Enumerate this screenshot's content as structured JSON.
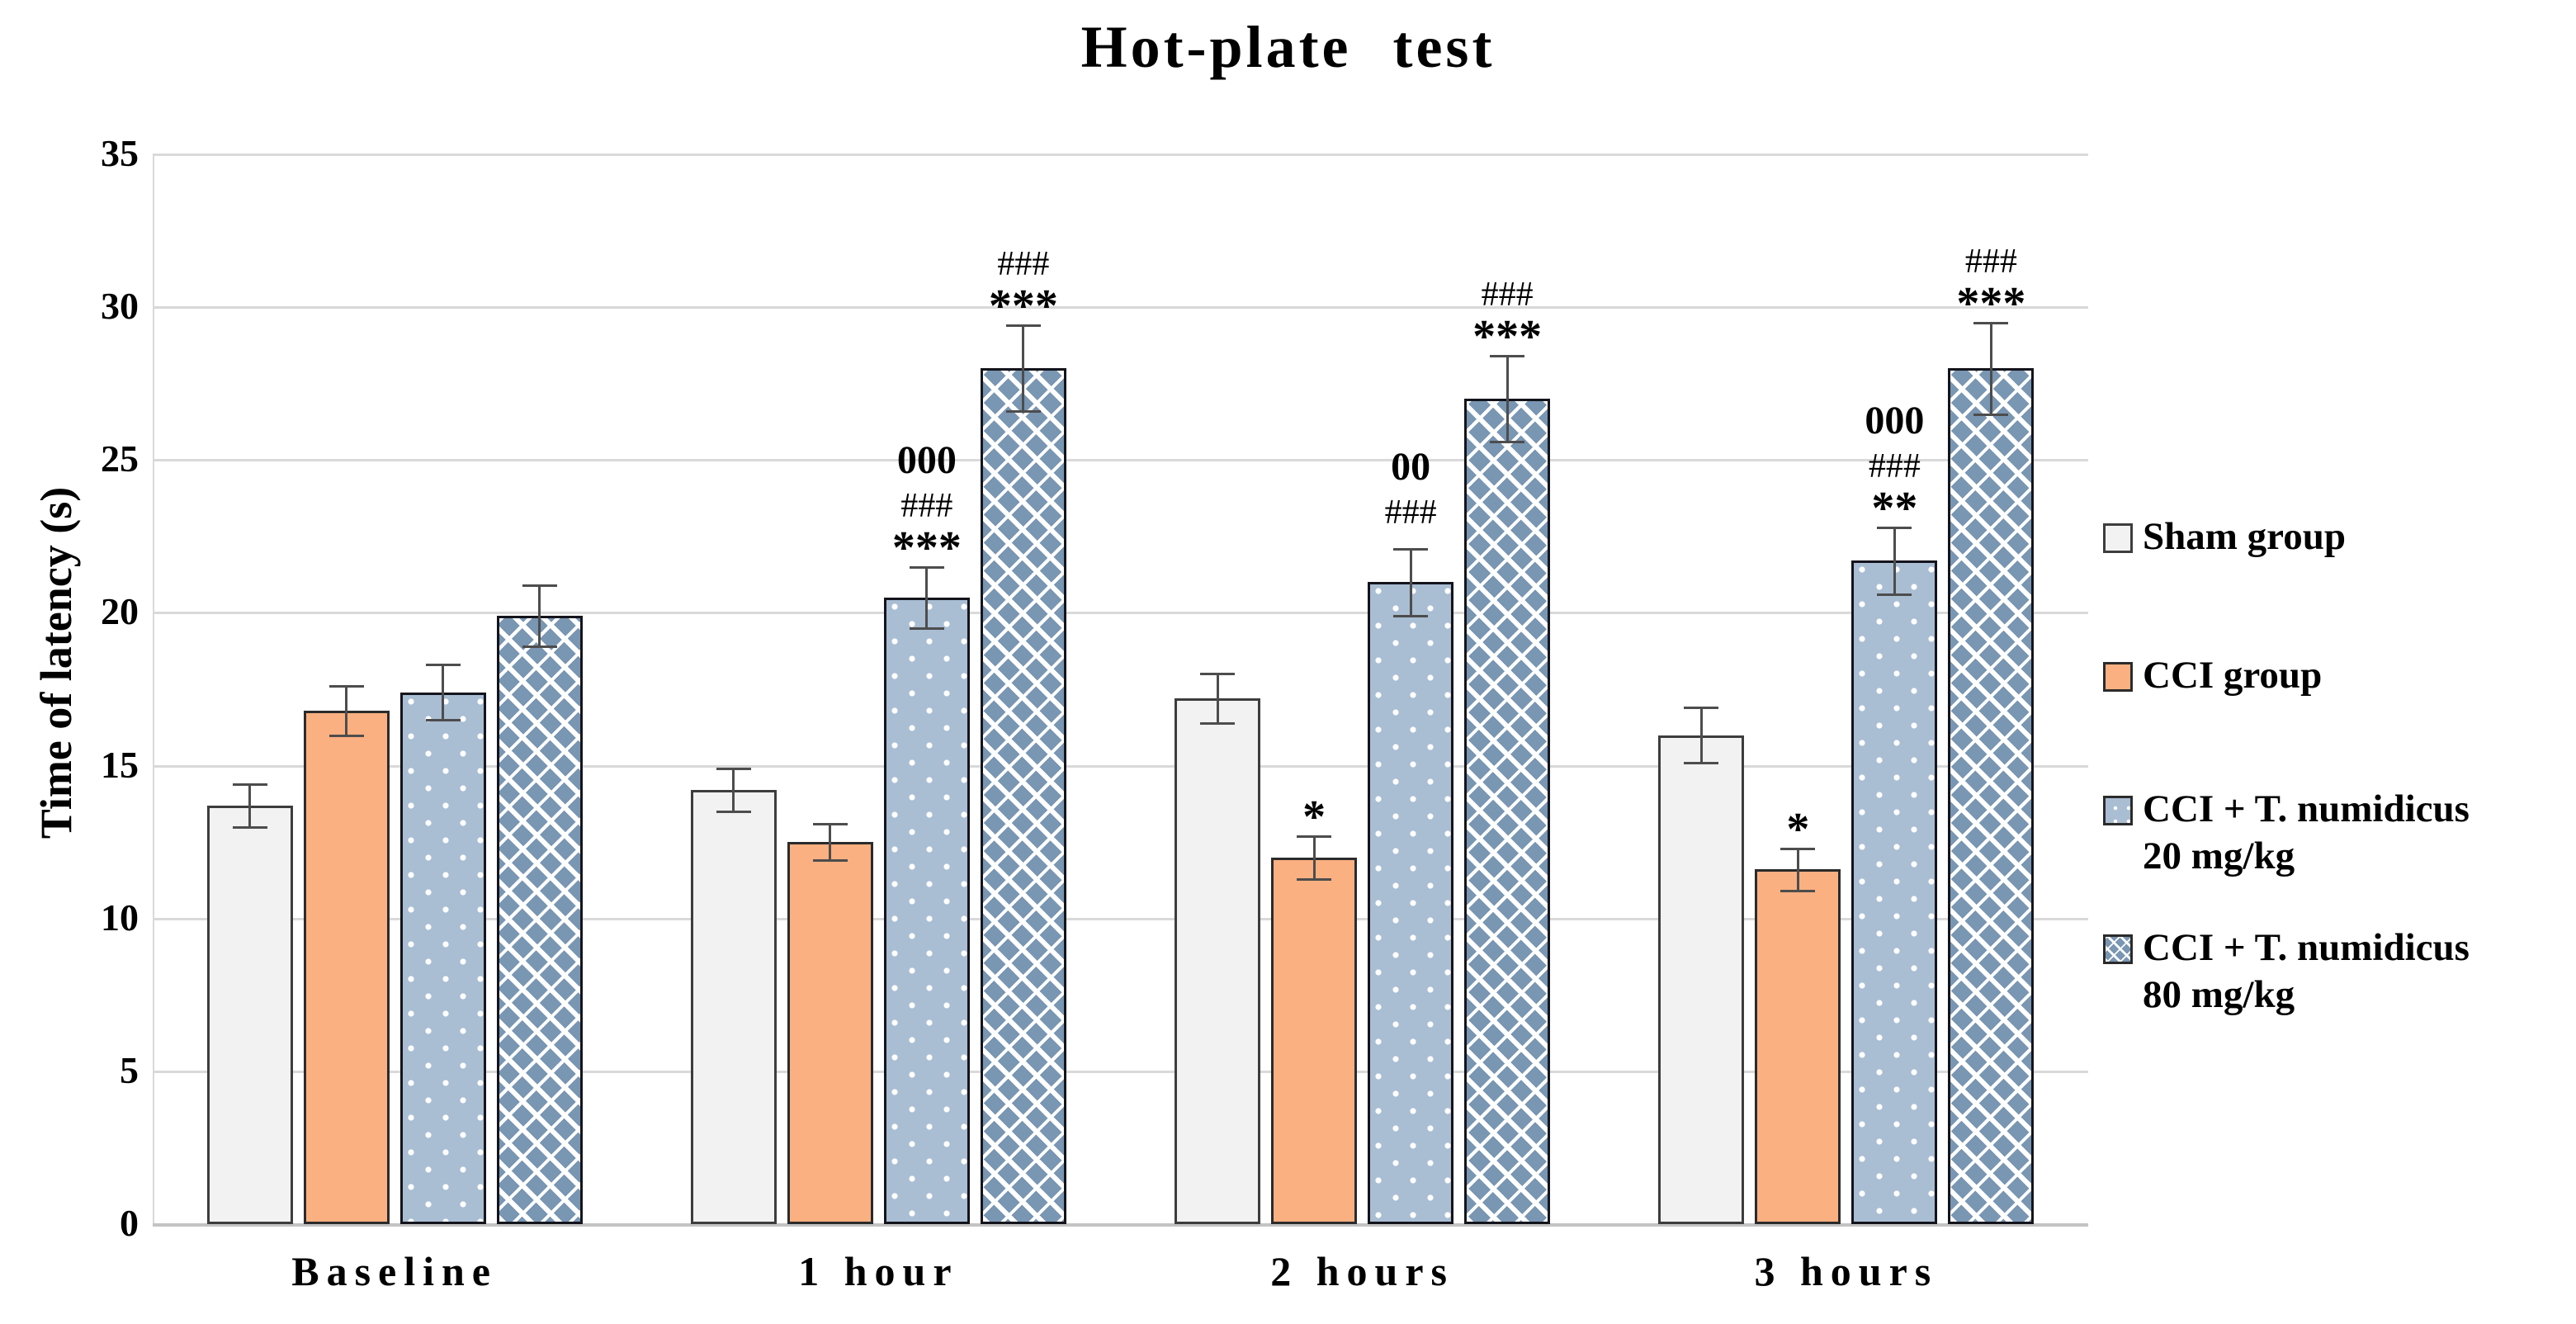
{
  "title": "Hot-plate test",
  "chart_data": {
    "type": "bar",
    "title": "Hot-plate test",
    "xlabel": "",
    "ylabel": "Time of latency (s)",
    "ylim": [
      0,
      35
    ],
    "yticks": [
      0,
      5,
      10,
      15,
      20,
      25,
      30,
      35
    ],
    "grid": true,
    "legend_position": "right",
    "categories": [
      "Baseline",
      "1 hour",
      "2 hours",
      "3 hours"
    ],
    "series": [
      {
        "name": "Sham group",
        "legend_lines": [
          "Sham group"
        ],
        "style": "sham",
        "values": [
          13.7,
          14.2,
          17.2,
          16.0
        ],
        "errors": [
          0.7,
          0.7,
          0.8,
          0.9
        ],
        "annotations": [
          [],
          [],
          [],
          []
        ]
      },
      {
        "name": "CCI group",
        "legend_lines": [
          "CCI group"
        ],
        "style": "cci",
        "values": [
          16.8,
          12.5,
          12.0,
          11.6
        ],
        "errors": [
          0.8,
          0.6,
          0.7,
          0.7
        ],
        "annotations": [
          [],
          [],
          [
            "*"
          ],
          [
            "*"
          ]
        ]
      },
      {
        "name": "CCI + T. numidicus 20 mg/kg",
        "legend_lines": [
          "CCI + T. numidicus",
          "20 mg/kg"
        ],
        "style": "t20",
        "values": [
          17.4,
          20.5,
          21.0,
          21.7
        ],
        "errors": [
          0.9,
          1.0,
          1.1,
          1.1
        ],
        "annotations": [
          [],
          [
            "000",
            "###",
            "***"
          ],
          [
            "00",
            "###"
          ],
          [
            "000",
            "###",
            "**"
          ]
        ]
      },
      {
        "name": "CCI + T. numidicus 80 mg/kg",
        "legend_lines": [
          "CCI + T. numidicus",
          "80 mg/kg"
        ],
        "style": "t80",
        "values": [
          19.9,
          28.0,
          27.0,
          28.0
        ],
        "errors": [
          1.0,
          1.4,
          1.4,
          1.5
        ],
        "annotations": [
          [],
          [
            "###",
            "***"
          ],
          [
            "###",
            "***"
          ],
          [
            "###",
            "***"
          ]
        ]
      }
    ],
    "colors": {
      "sham_fill": "#f2f2f2",
      "cci_fill": "#fbb081",
      "t20_fill": "#a9bdd3",
      "t80_fill": "#7996b3",
      "bar_border": "#1f1f1f",
      "error_bar": "#4d4d4d",
      "gridline": "#d9d9d9",
      "axis_line": "#c3c3c3",
      "text": "#000000"
    }
  }
}
